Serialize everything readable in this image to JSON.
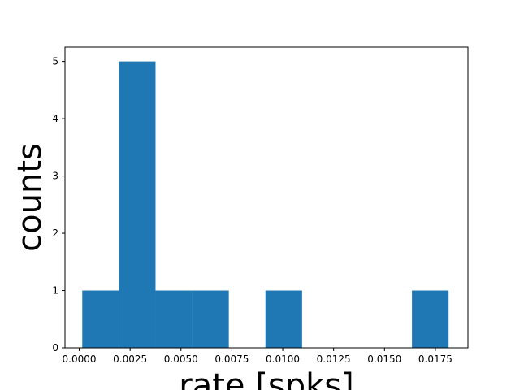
{
  "chart_data": {
    "type": "bar",
    "title": "",
    "xlabel": "rate [spks]",
    "ylabel": "counts",
    "bin_edges": [
      0.00015,
      0.00195,
      0.00375,
      0.00555,
      0.00735,
      0.00915,
      0.01095,
      0.01275,
      0.01455,
      0.01635,
      0.01815
    ],
    "values": [
      1,
      5,
      1,
      1,
      0,
      1,
      0,
      0,
      0,
      1
    ],
    "xlim": [
      -0.0007,
      0.0191
    ],
    "ylim": [
      0,
      5.25
    ],
    "xticks": [
      "0.0000",
      "0.0025",
      "0.0050",
      "0.0075",
      "0.0100",
      "0.0125",
      "0.0150",
      "0.0175"
    ],
    "yticks": [
      "0",
      "1",
      "2",
      "3",
      "4",
      "5"
    ],
    "bar_color": "#1f77b4",
    "grid": false,
    "legend": false
  }
}
